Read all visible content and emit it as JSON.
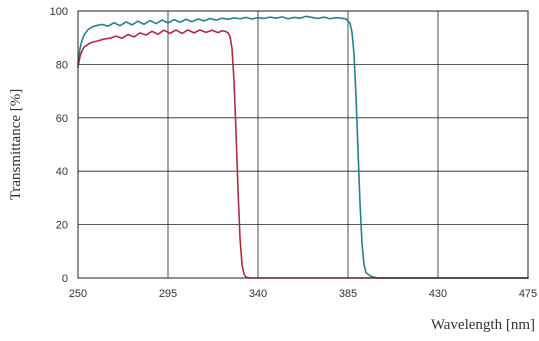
{
  "chart_data": {
    "type": "line",
    "title": "",
    "xlabel": "Wavelength [nm]",
    "ylabel": "Transmittance [%]",
    "xlim": [
      250,
      475
    ],
    "ylim": [
      0,
      100
    ],
    "x_ticks": [
      250,
      295,
      340,
      385,
      430,
      475
    ],
    "y_ticks": [
      0,
      20,
      40,
      60,
      80,
      100
    ],
    "grid": true,
    "legend": "none",
    "series": [
      {
        "color": "#2a7d96",
        "x": [
          250,
          251,
          252,
          253,
          255,
          257,
          259,
          262,
          265,
          268,
          271,
          274,
          277,
          280,
          283,
          286,
          289,
          292,
          295,
          298,
          301,
          304,
          307,
          310,
          313,
          316,
          319,
          322,
          325,
          328,
          331,
          334,
          337,
          340,
          343,
          346,
          349,
          352,
          355,
          358,
          361,
          364,
          367,
          370,
          373,
          376,
          379,
          382,
          384,
          386,
          387,
          388,
          389,
          390,
          391,
          392,
          393,
          394,
          396,
          398,
          400,
          405,
          415,
          430,
          445,
          460,
          475
        ],
        "y": [
          80,
          86,
          89,
          91,
          93,
          94,
          94.5,
          95,
          94.3,
          95.6,
          94.5,
          95.9,
          94.8,
          96.2,
          95,
          96.4,
          95.3,
          96.6,
          95.5,
          96.8,
          95.8,
          96.9,
          96,
          97,
          96.3,
          97.2,
          96.6,
          97.3,
          96.9,
          97.4,
          97.1,
          97.6,
          97,
          97.5,
          97.2,
          97.7,
          97.3,
          97.8,
          97.1,
          97.6,
          97.3,
          98,
          97.6,
          97.2,
          97.7,
          97.1,
          97.5,
          97.3,
          97,
          95.5,
          92,
          84,
          68,
          48,
          28,
          13,
          5,
          2,
          0.8,
          0.3,
          0,
          0,
          0,
          0,
          0,
          0,
          0
        ]
      },
      {
        "color": "#b02a40",
        "x": [
          250,
          251,
          252,
          253,
          255,
          257,
          260,
          263,
          266,
          269,
          272,
          275,
          278,
          281,
          284,
          287,
          290,
          293,
          296,
          299,
          302,
          305,
          308,
          311,
          314,
          317,
          320,
          322,
          324,
          325,
          326,
          327,
          328,
          329,
          330,
          331,
          332,
          333,
          334,
          336,
          340,
          345,
          360,
          400,
          475
        ],
        "y": [
          79,
          83,
          85,
          86.5,
          87.5,
          88.3,
          88.8,
          89.5,
          89.8,
          90.6,
          89.8,
          91.2,
          90.3,
          91.8,
          91,
          92.4,
          91.3,
          92.8,
          91.6,
          92.9,
          91.6,
          92.9,
          91.8,
          92.9,
          92,
          92.8,
          91.9,
          92.6,
          92.3,
          91.8,
          90.5,
          86,
          74,
          55,
          33,
          15,
          5,
          1.5,
          0.3,
          0,
          0,
          0,
          0,
          0,
          0
        ]
      }
    ]
  }
}
